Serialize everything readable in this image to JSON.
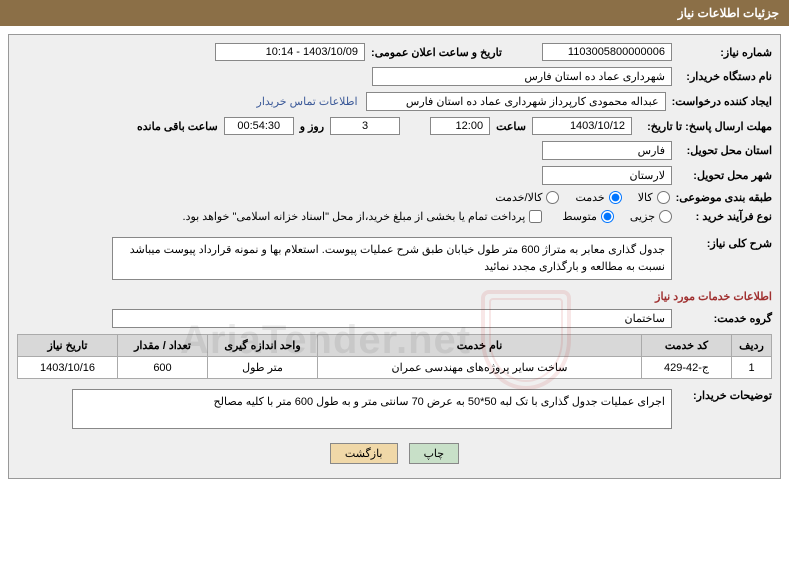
{
  "header": {
    "title": "جزئیات اطلاعات نیاز"
  },
  "need": {
    "number_label": "شماره نیاز:",
    "number": "1103005800000006",
    "announce_label": "تاریخ و ساعت اعلان عمومی:",
    "announce_value": "1403/10/09 - 10:14"
  },
  "buyer": {
    "label": "نام دستگاه خریدار:",
    "name": "شهرداری عماد ده استان فارس"
  },
  "requester": {
    "label": "ایجاد کننده درخواست:",
    "name": "عبداله محمودی کارپرداز شهرداری عماد ده استان فارس",
    "contact_link": "اطلاعات تماس خریدار"
  },
  "deadline": {
    "to_label": "مهلت ارسال پاسخ: تا تاریخ:",
    "date": "1403/10/12",
    "time_label": "ساعت",
    "time": "12:00",
    "days": "3",
    "days_label": "روز و",
    "countdown": "00:54:30",
    "remain_label": "ساعت باقی مانده"
  },
  "delivery": {
    "province_label": "استان محل تحویل:",
    "province": "فارس",
    "city_label": "شهر محل تحویل:",
    "city": "لارستان"
  },
  "category": {
    "label": "طبقه بندی موضوعی:",
    "opts": {
      "goods": "کالا",
      "service": "خدمت",
      "both": "کالا/خدمت"
    },
    "selected": "service"
  },
  "purchase_type": {
    "label": "نوع فرآیند خرید :",
    "opts": {
      "partial": "جزیی",
      "medium": "متوسط"
    },
    "note": "پرداخت تمام یا بخشی از مبلغ خرید،از محل \"اسناد خزانه اسلامی\" خواهد بود."
  },
  "description": {
    "label": "شرح کلی نیاز:",
    "text": "جدول گذاری معابر به متراژ 600 متر طول خیابان طبق شرح عملیات پیوست. استعلام بها و نمونه قرارداد پیوست میباشد  نسبت به مطالعه و بارگذاری مجدد نمائید"
  },
  "services": {
    "section_title": "اطلاعات خدمات مورد نیاز",
    "group_label": "گروه خدمت:",
    "group_value": "ساختمان"
  },
  "table": {
    "headers": {
      "row": "ردیف",
      "code": "کد خدمت",
      "name": "نام خدمت",
      "unit": "واحد اندازه گیری",
      "qty": "تعداد / مقدار",
      "date": "تاریخ نیاز"
    },
    "rows": [
      {
        "row": "1",
        "code": "ج-42-429",
        "name": "ساخت سایر پروژه‌های مهندسی عمران",
        "unit": "متر طول",
        "qty": "600",
        "date": "1403/10/16"
      }
    ]
  },
  "explain": {
    "label": "توضیحات خریدار:",
    "text": "اجرای عملیات جدول گذاری با تک لبه 50*50 به عرض 70 سانتی متر و به طول 600 متر با کلیه مصالح"
  },
  "buttons": {
    "print": "چاپ",
    "back": "بازگشت"
  },
  "watermark": "AriaTender.net"
}
